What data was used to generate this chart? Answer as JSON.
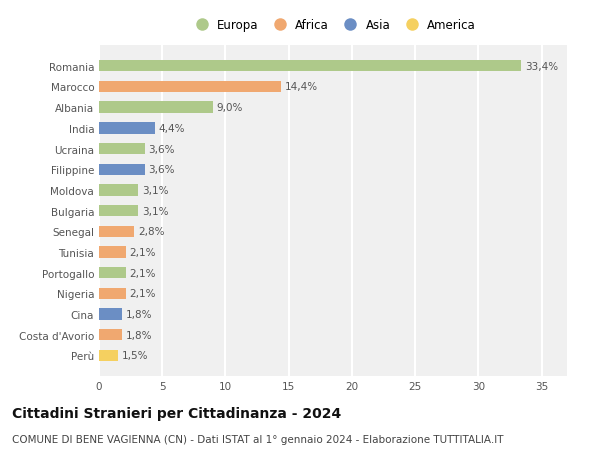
{
  "countries": [
    "Romania",
    "Marocco",
    "Albania",
    "India",
    "Ucraina",
    "Filippine",
    "Moldova",
    "Bulgaria",
    "Senegal",
    "Tunisia",
    "Portogallo",
    "Nigeria",
    "Cina",
    "Costa d'Avorio",
    "Perù"
  ],
  "values": [
    33.4,
    14.4,
    9.0,
    4.4,
    3.6,
    3.6,
    3.1,
    3.1,
    2.8,
    2.1,
    2.1,
    2.1,
    1.8,
    1.8,
    1.5
  ],
  "labels": [
    "33,4%",
    "14,4%",
    "9,0%",
    "4,4%",
    "3,6%",
    "3,6%",
    "3,1%",
    "3,1%",
    "2,8%",
    "2,1%",
    "2,1%",
    "2,1%",
    "1,8%",
    "1,8%",
    "1,5%"
  ],
  "continents": [
    "Europa",
    "Africa",
    "Europa",
    "Asia",
    "Europa",
    "Asia",
    "Europa",
    "Europa",
    "Africa",
    "Africa",
    "Europa",
    "Africa",
    "Asia",
    "Africa",
    "America"
  ],
  "continent_colors": {
    "Europa": "#aec98a",
    "Africa": "#f0a870",
    "Asia": "#6b8ec4",
    "America": "#f5d060"
  },
  "legend_order": [
    "Europa",
    "Africa",
    "Asia",
    "America"
  ],
  "xlim": [
    0,
    37
  ],
  "xticks": [
    0,
    5,
    10,
    15,
    20,
    25,
    30,
    35
  ],
  "title": "Cittadini Stranieri per Cittadinanza - 2024",
  "subtitle": "COMUNE DI BENE VAGIENNA (CN) - Dati ISTAT al 1° gennaio 2024 - Elaborazione TUTTITALIA.IT",
  "bg_color": "#ffffff",
  "plot_bg_color": "#f0f0f0",
  "grid_color": "#ffffff",
  "bar_height": 0.55,
  "label_fontsize": 7.5,
  "title_fontsize": 10,
  "subtitle_fontsize": 7.5,
  "tick_fontsize": 7.5,
  "legend_fontsize": 8.5
}
